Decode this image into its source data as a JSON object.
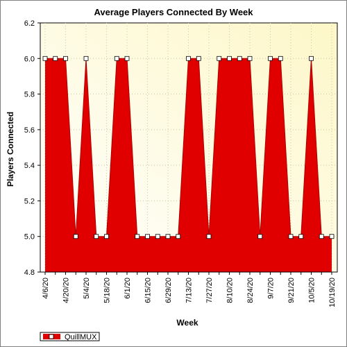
{
  "chart_data": {
    "type": "area",
    "title": "Average Players Connected By Week",
    "xlabel": "Week",
    "ylabel": "Players Connected",
    "ylim": [
      4.8,
      6.2
    ],
    "yticks": [
      "4.8",
      "5.0",
      "5.2",
      "5.4",
      "5.6",
      "5.8",
      "6.0",
      "6.2"
    ],
    "x": [
      "4/6/20",
      "4/13/20",
      "4/20/20",
      "4/27/20",
      "5/4/20",
      "5/11/20",
      "5/18/20",
      "5/25/20",
      "6/1/20",
      "6/8/20",
      "6/15/20",
      "6/22/20",
      "6/29/20",
      "7/6/20",
      "7/13/20",
      "7/20/20",
      "7/27/20",
      "8/3/20",
      "8/10/20",
      "8/17/20",
      "8/24/20",
      "8/31/20",
      "9/7/20",
      "9/14/20",
      "9/21/20",
      "9/28/20",
      "10/5/20",
      "10/12/20",
      "10/19/20"
    ],
    "xtick_labels": [
      "4/6/20",
      "4/20/20",
      "5/4/20",
      "5/18/20",
      "6/1/20",
      "6/15/20",
      "6/29/20",
      "7/13/20",
      "7/27/20",
      "8/10/20",
      "8/24/20",
      "9/7/20",
      "9/21/20",
      "10/5/20",
      "10/19/20"
    ],
    "series": [
      {
        "name": "QuillMUX",
        "color": "#e00000",
        "values": [
          6.0,
          6.0,
          6.0,
          5.0,
          6.0,
          5.0,
          5.0,
          6.0,
          6.0,
          5.0,
          5.0,
          5.0,
          5.0,
          5.0,
          6.0,
          6.0,
          5.0,
          6.0,
          6.0,
          6.0,
          6.0,
          5.0,
          6.0,
          6.0,
          5.0,
          5.0,
          6.0,
          5.0,
          5.0
        ]
      }
    ],
    "legend": "bottom-left",
    "grid": true,
    "plot_background": "gradient-white-to-light-yellow"
  }
}
